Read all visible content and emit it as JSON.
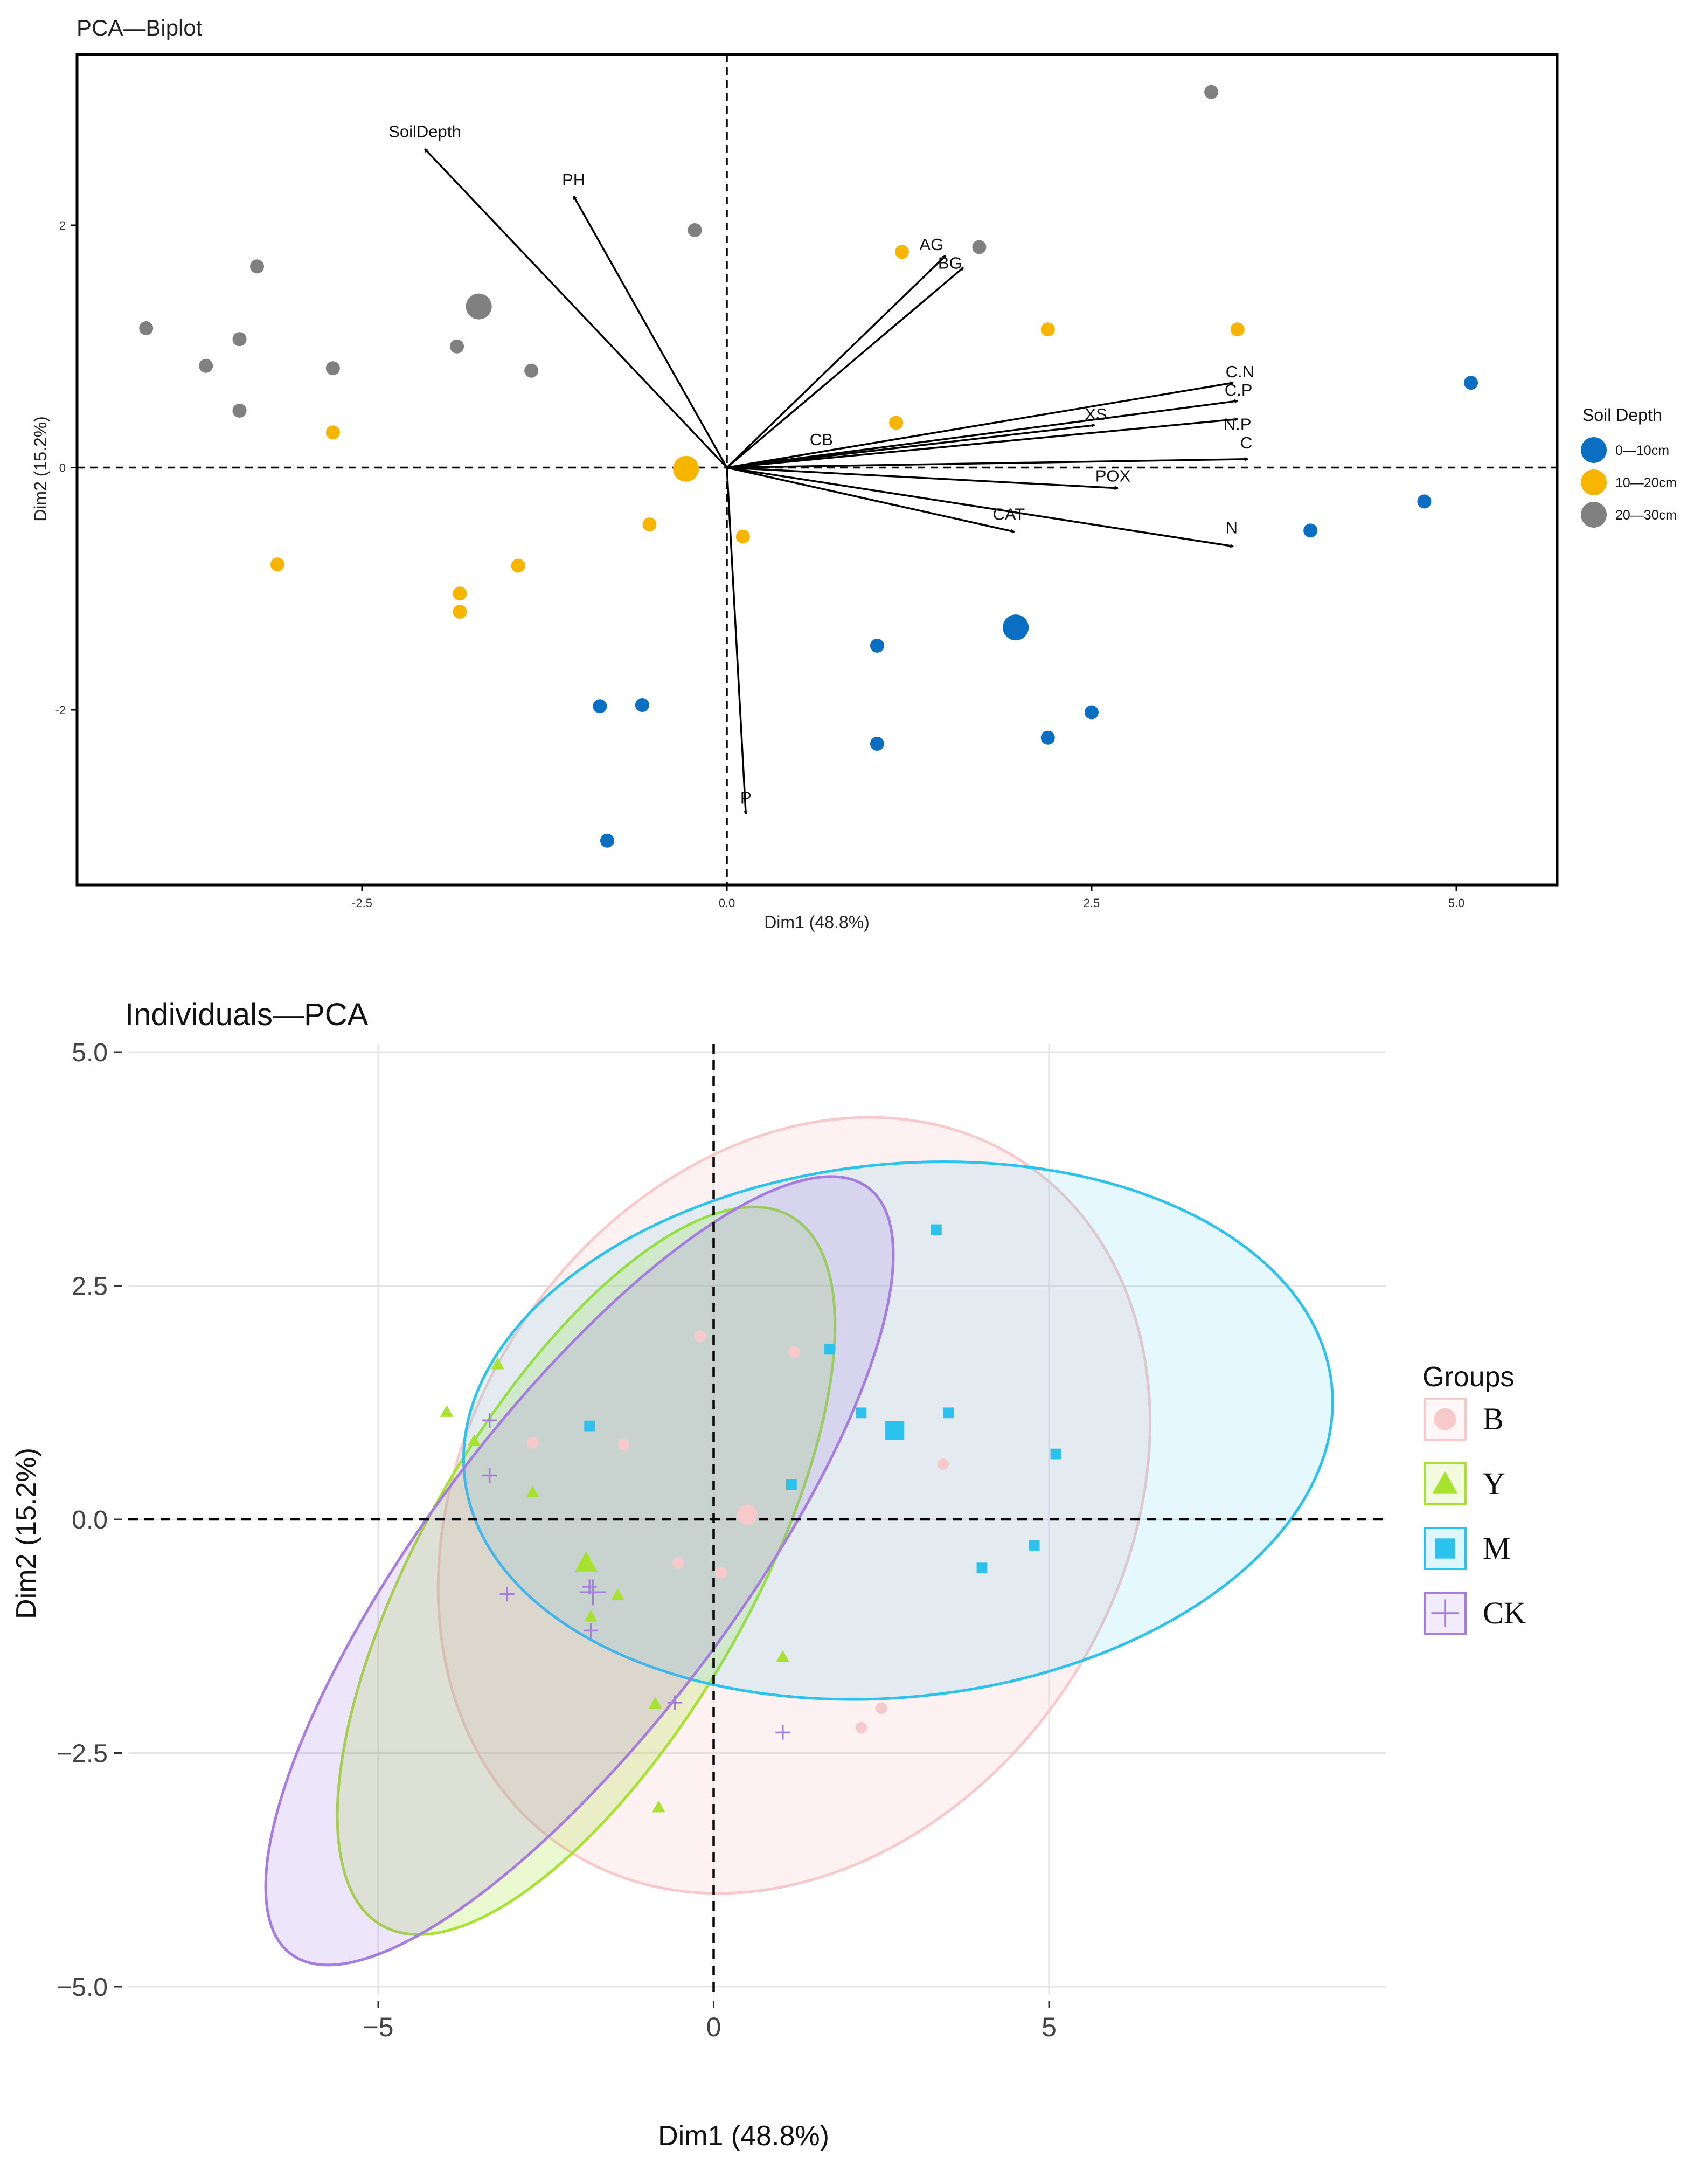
{
  "chart_data": [
    {
      "type": "scatter",
      "subtype": "pca-biplot",
      "title": "PCA—Biplot",
      "xlabel": "Dim1 (48.8%)",
      "ylabel": "Dim2 (15.2%)",
      "xlim": [
        -4.3,
        5.5
      ],
      "ylim": [
        -3.3,
        3.5
      ],
      "x_ticks": [
        -2.5,
        0.0,
        2.5,
        5.0
      ],
      "x_tick_labels": [
        "-2.5",
        "0.0",
        "2.5",
        "5.0"
      ],
      "y_ticks": [
        -2,
        0,
        2
      ],
      "y_tick_labels": [
        "-2",
        "0",
        "2"
      ],
      "grid": false,
      "legend_placement": "right",
      "legend": {
        "title": "Soil Depth",
        "entries": [
          {
            "label": "0—10cm",
            "color": "#0a6fc2"
          },
          {
            "label": "10—20cm",
            "color": "#f7b500"
          },
          {
            "label": "20—30cm",
            "color": "#808080"
          }
        ]
      },
      "series": [
        {
          "name": "0—10cm",
          "color": "#0a6fc2",
          "points": [
            [
              5.1,
              0.7
            ],
            [
              4.78,
              -0.28
            ],
            [
              4.0,
              -0.52
            ],
            [
              2.5,
              -2.02
            ],
            [
              2.2,
              -2.23
            ],
            [
              1.03,
              -1.47
            ],
            [
              1.03,
              -2.28
            ],
            [
              -0.58,
              -1.96
            ],
            [
              -0.87,
              -1.97
            ],
            [
              -0.82,
              -3.08
            ]
          ],
          "centroid": [
            1.98,
            -1.32
          ]
        },
        {
          "name": "10—20cm",
          "color": "#f7b500",
          "points": [
            [
              3.5,
              1.14
            ],
            [
              2.2,
              1.14
            ],
            [
              1.2,
              1.78
            ],
            [
              1.16,
              0.37
            ],
            [
              0.11,
              -0.57
            ],
            [
              -0.53,
              -0.47
            ],
            [
              -1.43,
              -0.81
            ],
            [
              -1.83,
              -1.04
            ],
            [
              -1.83,
              -1.19
            ],
            [
              -3.08,
              -0.8
            ],
            [
              -2.7,
              0.29
            ]
          ],
          "centroid": [
            -0.28,
            -0.01
          ]
        },
        {
          "name": "20—30cm",
          "color": "#808080",
          "points": [
            [
              3.32,
              3.1
            ],
            [
              1.73,
              1.82
            ],
            [
              -0.22,
              1.96
            ],
            [
              -1.34,
              0.8
            ],
            [
              -1.85,
              1.0
            ],
            [
              -2.7,
              0.82
            ],
            [
              -3.22,
              1.66
            ],
            [
              -3.34,
              1.06
            ],
            [
              -3.34,
              0.47
            ],
            [
              -3.57,
              0.84
            ],
            [
              -3.98,
              1.15
            ]
          ],
          "centroid": [
            -1.7,
            1.33
          ]
        }
      ],
      "loadings": [
        {
          "label": "SoilDepth",
          "x": -2.07,
          "y": 2.63
        },
        {
          "label": "PH",
          "x": -1.05,
          "y": 2.24
        },
        {
          "label": "AG",
          "x": 1.5,
          "y": 1.75
        },
        {
          "label": "BG",
          "x": 1.62,
          "y": 1.65
        },
        {
          "label": "C.N",
          "x": 3.47,
          "y": 0.7
        },
        {
          "label": "C.P",
          "x": 3.5,
          "y": 0.55
        },
        {
          "label": "N.P",
          "x": 3.5,
          "y": 0.4
        },
        {
          "label": "XS",
          "x": 2.52,
          "y": 0.35
        },
        {
          "label": "CB",
          "x": 0.42,
          "y": 0.07
        },
        {
          "label": "C",
          "x": 3.57,
          "y": 0.07
        },
        {
          "label": "POX",
          "x": 2.68,
          "y": -0.17
        },
        {
          "label": "CAT",
          "x": 1.97,
          "y": -0.53
        },
        {
          "label": "N",
          "x": 3.47,
          "y": -0.65
        },
        {
          "label": "P",
          "x": 0.13,
          "y": -2.86
        }
      ]
    },
    {
      "type": "scatter",
      "subtype": "pca-individuals-ellipses",
      "title": "Individuals—PCA",
      "xlabel": "Dim1 (48.8%)",
      "ylabel": "Dim2 (15.2%)",
      "xlim": [
        -8.3,
        10.2
      ],
      "ylim": [
        -5.3,
        5.2
      ],
      "x_ticks": [
        -5,
        0,
        5
      ],
      "x_tick_labels": [
        "−5",
        "0",
        "5"
      ],
      "y_ticks": [
        5.0,
        2.5,
        0.0,
        -2.5,
        -5.0
      ],
      "y_tick_labels": [
        "5.0",
        "2.5",
        "0.0",
        "−2.5",
        "−5.0"
      ],
      "grid": true,
      "legend_placement": "right",
      "legend": {
        "title": "Groups",
        "entries": [
          {
            "label": "B",
            "shape": "circle",
            "color": "#f8c9cb"
          },
          {
            "label": "Y",
            "shape": "triangle",
            "color": "#a6e22e"
          },
          {
            "label": "M",
            "shape": "square",
            "color": "#2bc3ee"
          },
          {
            "label": "CK",
            "shape": "plus",
            "color": "#a57de0"
          }
        ]
      },
      "series": [
        {
          "name": "B",
          "shape": "circle",
          "color": "#f8c9cb",
          "points": [
            [
              -0.2,
              1.96
            ],
            [
              1.2,
              1.79
            ],
            [
              -2.7,
              0.82
            ],
            [
              -1.34,
              0.8
            ],
            [
              3.42,
              0.59
            ],
            [
              -0.53,
              -0.47
            ],
            [
              0.11,
              -0.57
            ],
            [
              2.5,
              -2.02
            ],
            [
              2.2,
              -2.23
            ]
          ],
          "centroid": [
            0.5,
            0.05
          ],
          "ellipse": {
            "cx": 1.2,
            "cy": 0.15,
            "rx": 6.15,
            "ry": 3.5,
            "angle_deg": -56
          }
        },
        {
          "name": "Y",
          "shape": "triangle",
          "color": "#a6e22e",
          "points": [
            [
              -3.22,
              1.66
            ],
            [
              -3.98,
              1.15
            ],
            [
              -3.57,
              0.84
            ],
            [
              -2.7,
              0.29
            ],
            [
              -1.43,
              -0.81
            ],
            [
              -1.83,
              -1.04
            ],
            [
              1.03,
              -1.47
            ],
            [
              -0.87,
              -1.97
            ],
            [
              -0.82,
              -3.08
            ]
          ],
          "centroid": [
            -1.9,
            -0.47
          ],
          "ellipse": {
            "cx": -1.9,
            "cy": -0.55,
            "rx": 6.1,
            "ry": 1.75,
            "angle_deg": -60
          }
        },
        {
          "name": "M",
          "shape": "square",
          "color": "#2bc3ee",
          "points": [
            [
              3.32,
              3.1
            ],
            [
              1.73,
              1.82
            ],
            [
              2.2,
              1.14
            ],
            [
              3.5,
              1.14
            ],
            [
              -1.85,
              1.0
            ],
            [
              5.1,
              0.7
            ],
            [
              1.16,
              0.37
            ],
            [
              4.78,
              -0.28
            ],
            [
              4.0,
              -0.52
            ]
          ],
          "centroid": [
            2.7,
            0.95
          ],
          "ellipse": {
            "cx": 2.75,
            "cy": 0.95,
            "rx": 6.5,
            "ry": 2.85,
            "angle_deg": -6
          }
        },
        {
          "name": "CK",
          "shape": "plus",
          "color": "#a57de0",
          "points": [
            [
              -3.34,
              1.06
            ],
            [
              -3.34,
              0.47
            ],
            [
              -3.08,
              -0.8
            ],
            [
              -1.83,
              -1.19
            ],
            [
              -0.58,
              -1.96
            ],
            [
              1.03,
              -2.28
            ],
            [
              -1.85,
              -0.72
            ]
          ],
          "centroid": [
            -1.8,
            -0.78
          ],
          "ellipse": {
            "cx": -2.0,
            "cy": -0.55,
            "rx": 7.15,
            "ry": 1.65,
            "angle_deg": -53
          }
        }
      ]
    }
  ]
}
